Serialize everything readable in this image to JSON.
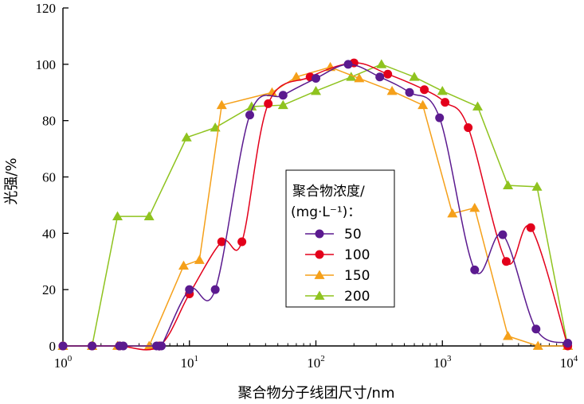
{
  "chart_data": {
    "type": "line",
    "xscale": "log",
    "xlim": [
      1,
      10000
    ],
    "ylim": [
      0,
      120
    ],
    "x_ticks": [
      {
        "base": "10",
        "exp": "0",
        "value": 1
      },
      {
        "base": "10",
        "exp": "1",
        "value": 10
      },
      {
        "base": "10",
        "exp": "2",
        "value": 100
      },
      {
        "base": "10",
        "exp": "3",
        "value": 1000
      },
      {
        "base": "10",
        "exp": "4",
        "value": 10000
      }
    ],
    "y_ticks": [
      "0",
      "20",
      "40",
      "60",
      "80",
      "100",
      "120"
    ],
    "xlabel": "聚合物分子线团尺寸/nm",
    "ylabel": "光强/%",
    "legend_title_line1": "聚合物浓度/",
    "legend_title_line2": "(mg·L⁻¹)：",
    "legend_position": "center",
    "grid": false,
    "series": [
      {
        "name": "50",
        "color": "#5b1a8f",
        "marker": "circle",
        "x": [
          1,
          1.7,
          2.8,
          3,
          5.5,
          6,
          10,
          16,
          30,
          55,
          100,
          180,
          320,
          550,
          950,
          1800,
          3000,
          5500,
          9800
        ],
        "y": [
          0,
          0,
          0,
          0,
          0,
          0,
          20,
          20,
          82,
          89,
          95,
          100,
          95.5,
          90,
          81,
          27,
          39.5,
          6,
          1
        ]
      },
      {
        "name": "100",
        "color": "#e3001b",
        "marker": "circle",
        "x": [
          1,
          1.7,
          2.8,
          5.8,
          10,
          18,
          26,
          42,
          90,
          200,
          370,
          720,
          1050,
          1600,
          3200,
          5000,
          9800
        ],
        "y": [
          0,
          0,
          0,
          0,
          18.5,
          37,
          37,
          86,
          95.5,
          100.5,
          96.5,
          91,
          86.5,
          77.5,
          30,
          42,
          0
        ]
      },
      {
        "name": "150",
        "color": "#f5a01a",
        "marker": "triangle",
        "x": [
          1,
          1.7,
          2.7,
          4.8,
          9,
          12,
          18,
          45,
          70,
          130,
          220,
          400,
          700,
          1200,
          1800,
          3300,
          5700,
          9800
        ],
        "y": [
          0,
          0,
          0,
          0,
          28.5,
          30.5,
          85.5,
          90,
          95.5,
          99,
          95,
          90.5,
          85.5,
          47,
          49,
          3.5,
          0,
          0
        ]
      },
      {
        "name": "200",
        "color": "#8fc31f",
        "marker": "triangle",
        "x": [
          1,
          1.7,
          2.7,
          4.8,
          9.5,
          16,
          31,
          55,
          100,
          190,
          330,
          600,
          1000,
          1900,
          3300,
          5600,
          9800
        ],
        "y": [
          0,
          0,
          46,
          46,
          74,
          77.5,
          85,
          85.5,
          90.5,
          95.5,
          100,
          95.5,
          90.5,
          85,
          57,
          56.5,
          0
        ]
      }
    ]
  }
}
